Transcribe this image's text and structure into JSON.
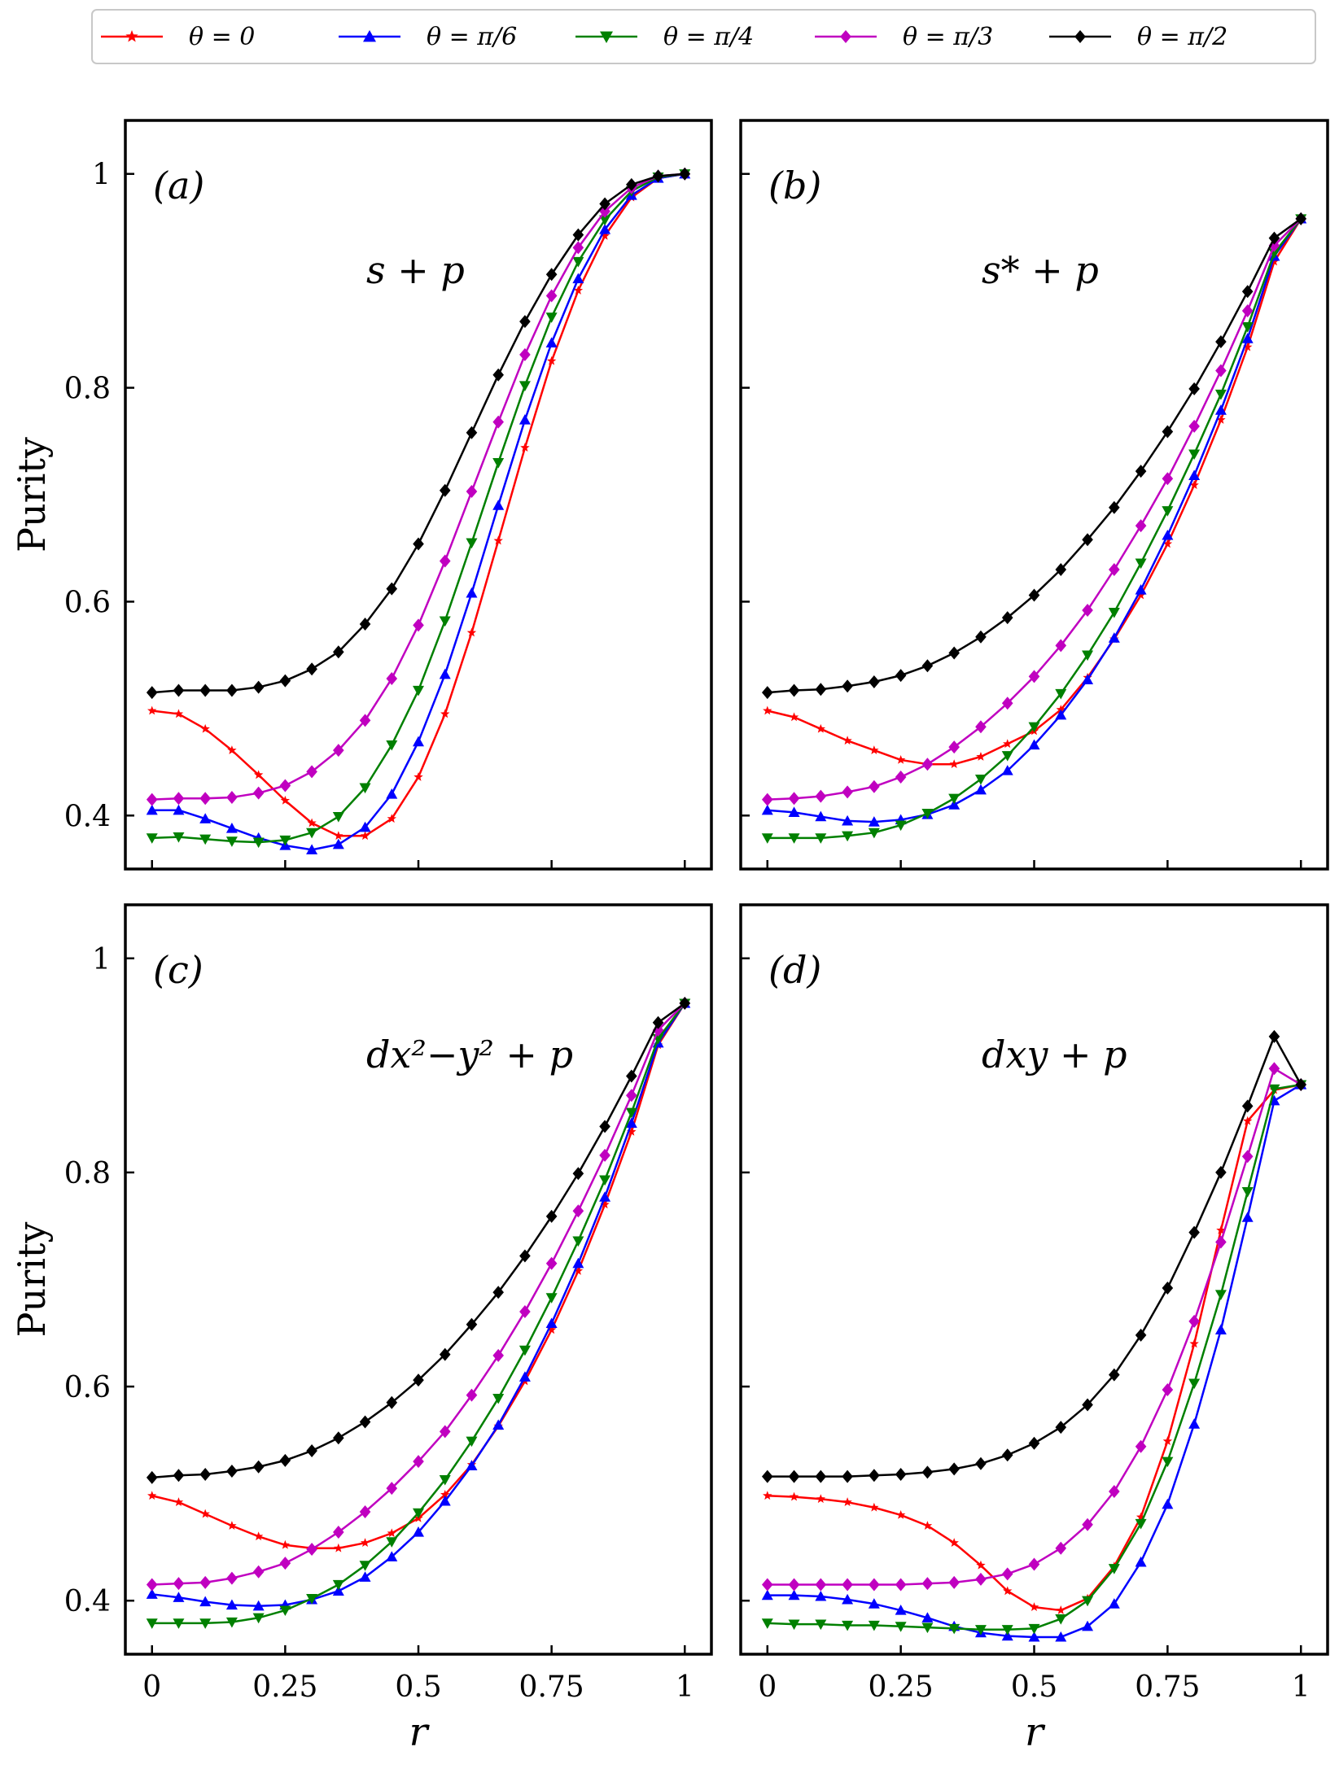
{
  "figure": {
    "x_tick_labels": [
      "0",
      "0.25",
      "0.5",
      "0.75",
      "1"
    ],
    "y_tick_labels": [
      "0.4",
      "0.6",
      "0.8",
      "1"
    ]
  },
  "legend": {
    "position": "top",
    "entries": [
      {
        "label": "θ = 0",
        "color": "#ff0000",
        "marker": "star"
      },
      {
        "label": "θ = π/6",
        "color": "#0000ff",
        "marker": "triangle-up"
      },
      {
        "label": "θ = π/4",
        "color": "#008000",
        "marker": "triangle-down"
      },
      {
        "label": "θ = π/3",
        "color": "#c000c0",
        "marker": "diamond"
      },
      {
        "label": "θ = π/2",
        "color": "#000000",
        "marker": "diamond"
      }
    ]
  },
  "chart_data": [
    {
      "type": "line",
      "panel_label": "(a)",
      "annotation": "s + p",
      "xlabel": "r",
      "ylabel": "Purity",
      "xlim": [
        -0.05,
        1.05
      ],
      "ylim": [
        0.35,
        1.05
      ],
      "x": [
        0,
        0.05,
        0.1,
        0.15,
        0.2,
        0.25,
        0.3,
        0.35,
        0.4,
        0.45,
        0.5,
        0.55,
        0.6,
        0.65,
        0.7,
        0.75,
        0.8,
        0.85,
        0.9,
        0.95,
        1.0
      ],
      "series": [
        {
          "name": "θ = 0",
          "values": [
            0.498,
            0.495,
            0.481,
            0.461,
            0.438,
            0.414,
            0.393,
            0.381,
            0.381,
            0.397,
            0.436,
            0.495,
            0.571,
            0.657,
            0.744,
            0.825,
            0.891,
            0.942,
            0.978,
            0.996,
            1.0
          ]
        },
        {
          "name": "θ = π/6",
          "values": [
            0.405,
            0.405,
            0.397,
            0.388,
            0.379,
            0.372,
            0.368,
            0.373,
            0.389,
            0.42,
            0.469,
            0.532,
            0.608,
            0.69,
            0.77,
            0.842,
            0.902,
            0.948,
            0.98,
            0.996,
            1.0
          ]
        },
        {
          "name": "θ = π/4",
          "values": [
            0.379,
            0.38,
            0.378,
            0.376,
            0.375,
            0.377,
            0.384,
            0.399,
            0.426,
            0.466,
            0.517,
            0.582,
            0.655,
            0.73,
            0.802,
            0.866,
            0.918,
            0.957,
            0.984,
            0.997,
            1.0
          ]
        },
        {
          "name": "θ = π/3",
          "values": [
            0.415,
            0.416,
            0.416,
            0.417,
            0.421,
            0.428,
            0.441,
            0.461,
            0.489,
            0.528,
            0.578,
            0.638,
            0.703,
            0.768,
            0.831,
            0.886,
            0.931,
            0.965,
            0.987,
            0.998,
            1.0
          ]
        },
        {
          "name": "θ = π/2",
          "values": [
            0.515,
            0.517,
            0.517,
            0.517,
            0.52,
            0.526,
            0.537,
            0.553,
            0.579,
            0.612,
            0.654,
            0.704,
            0.758,
            0.812,
            0.862,
            0.906,
            0.943,
            0.972,
            0.99,
            0.998,
            1.0
          ]
        }
      ]
    },
    {
      "type": "line",
      "panel_label": "(b)",
      "annotation": "s* + p",
      "xlabel": "r",
      "ylabel": "Purity",
      "xlim": [
        -0.05,
        1.05
      ],
      "ylim": [
        0.35,
        1.05
      ],
      "x": [
        0,
        0.05,
        0.1,
        0.15,
        0.2,
        0.25,
        0.3,
        0.35,
        0.4,
        0.45,
        0.5,
        0.55,
        0.6,
        0.65,
        0.7,
        0.75,
        0.8,
        0.85,
        0.9,
        0.95,
        1.0
      ],
      "series": [
        {
          "name": "θ = 0",
          "values": [
            0.498,
            0.492,
            0.481,
            0.47,
            0.461,
            0.452,
            0.448,
            0.448,
            0.455,
            0.467,
            0.479,
            0.499,
            0.529,
            0.565,
            0.606,
            0.654,
            0.709,
            0.77,
            0.838,
            0.918,
            0.958
          ]
        },
        {
          "name": "θ = π/6",
          "values": [
            0.405,
            0.403,
            0.399,
            0.395,
            0.394,
            0.396,
            0.401,
            0.41,
            0.424,
            0.442,
            0.466,
            0.494,
            0.527,
            0.566,
            0.611,
            0.662,
            0.718,
            0.779,
            0.846,
            0.923,
            0.958
          ]
        },
        {
          "name": "θ = π/4",
          "values": [
            0.379,
            0.379,
            0.379,
            0.381,
            0.384,
            0.391,
            0.402,
            0.416,
            0.434,
            0.456,
            0.483,
            0.514,
            0.55,
            0.59,
            0.636,
            0.685,
            0.738,
            0.794,
            0.857,
            0.926,
            0.958
          ]
        },
        {
          "name": "θ = π/3",
          "values": [
            0.415,
            0.416,
            0.418,
            0.422,
            0.427,
            0.436,
            0.448,
            0.464,
            0.483,
            0.505,
            0.53,
            0.559,
            0.592,
            0.63,
            0.671,
            0.715,
            0.764,
            0.816,
            0.872,
            0.933,
            0.958
          ]
        },
        {
          "name": "θ = π/2",
          "values": [
            0.515,
            0.517,
            0.518,
            0.521,
            0.525,
            0.531,
            0.54,
            0.552,
            0.567,
            0.585,
            0.606,
            0.63,
            0.658,
            0.688,
            0.722,
            0.759,
            0.799,
            0.843,
            0.89,
            0.94,
            0.958
          ]
        }
      ]
    },
    {
      "type": "line",
      "panel_label": "(c)",
      "annotation": "dx²−y² + p",
      "xlabel": "r",
      "ylabel": "Purity",
      "xlim": [
        -0.05,
        1.05
      ],
      "ylim": [
        0.35,
        1.05
      ],
      "x": [
        0,
        0.05,
        0.1,
        0.15,
        0.2,
        0.25,
        0.3,
        0.35,
        0.4,
        0.45,
        0.5,
        0.55,
        0.6,
        0.65,
        0.7,
        0.75,
        0.8,
        0.85,
        0.9,
        0.95,
        1.0
      ],
      "series": [
        {
          "name": "θ = 0",
          "values": [
            0.498,
            0.492,
            0.481,
            0.47,
            0.46,
            0.452,
            0.449,
            0.449,
            0.454,
            0.463,
            0.477,
            0.499,
            0.527,
            0.563,
            0.605,
            0.653,
            0.708,
            0.77,
            0.838,
            0.919,
            0.958
          ]
        },
        {
          "name": "θ = π/6",
          "values": [
            0.406,
            0.403,
            0.399,
            0.396,
            0.395,
            0.396,
            0.401,
            0.409,
            0.422,
            0.441,
            0.464,
            0.493,
            0.526,
            0.564,
            0.609,
            0.659,
            0.715,
            0.777,
            0.846,
            0.921,
            0.958
          ]
        },
        {
          "name": "θ = π/4",
          "values": [
            0.379,
            0.379,
            0.379,
            0.38,
            0.384,
            0.391,
            0.402,
            0.415,
            0.433,
            0.455,
            0.482,
            0.513,
            0.549,
            0.589,
            0.634,
            0.683,
            0.736,
            0.793,
            0.856,
            0.925,
            0.958
          ]
        },
        {
          "name": "θ = π/3",
          "values": [
            0.415,
            0.416,
            0.417,
            0.421,
            0.427,
            0.435,
            0.448,
            0.464,
            0.483,
            0.505,
            0.53,
            0.558,
            0.592,
            0.629,
            0.67,
            0.715,
            0.764,
            0.816,
            0.872,
            0.933,
            0.958
          ]
        },
        {
          "name": "θ = π/2",
          "values": [
            0.515,
            0.517,
            0.518,
            0.521,
            0.525,
            0.531,
            0.54,
            0.552,
            0.567,
            0.585,
            0.606,
            0.63,
            0.658,
            0.688,
            0.722,
            0.759,
            0.799,
            0.843,
            0.89,
            0.94,
            0.958
          ]
        }
      ]
    },
    {
      "type": "line",
      "panel_label": "(d)",
      "annotation": "dxy + p",
      "xlabel": "r",
      "ylabel": "Purity",
      "xlim": [
        -0.05,
        1.05
      ],
      "ylim": [
        0.35,
        1.05
      ],
      "x": [
        0,
        0.05,
        0.1,
        0.15,
        0.2,
        0.25,
        0.3,
        0.35,
        0.4,
        0.45,
        0.5,
        0.55,
        0.6,
        0.65,
        0.7,
        0.75,
        0.8,
        0.85,
        0.9,
        0.95,
        1.0
      ],
      "series": [
        {
          "name": "θ = 0",
          "values": [
            0.498,
            0.497,
            0.495,
            0.492,
            0.487,
            0.48,
            0.47,
            0.454,
            0.433,
            0.409,
            0.394,
            0.391,
            0.402,
            0.432,
            0.478,
            0.549,
            0.64,
            0.746,
            0.848,
            0.877,
            0.882
          ]
        },
        {
          "name": "θ = π/6",
          "values": [
            0.405,
            0.405,
            0.404,
            0.401,
            0.397,
            0.391,
            0.384,
            0.376,
            0.37,
            0.367,
            0.366,
            0.366,
            0.376,
            0.397,
            0.436,
            0.49,
            0.565,
            0.653,
            0.758,
            0.867,
            0.882
          ]
        },
        {
          "name": "θ = π/4",
          "values": [
            0.379,
            0.378,
            0.378,
            0.377,
            0.377,
            0.376,
            0.375,
            0.374,
            0.373,
            0.373,
            0.374,
            0.383,
            0.4,
            0.43,
            0.472,
            0.53,
            0.603,
            0.686,
            0.782,
            0.878,
            0.882
          ]
        },
        {
          "name": "θ = π/3",
          "values": [
            0.415,
            0.415,
            0.415,
            0.415,
            0.415,
            0.415,
            0.416,
            0.417,
            0.42,
            0.425,
            0.434,
            0.449,
            0.471,
            0.502,
            0.544,
            0.597,
            0.661,
            0.735,
            0.815,
            0.897,
            0.882
          ]
        },
        {
          "name": "θ = π/2",
          "values": [
            0.516,
            0.516,
            0.516,
            0.516,
            0.517,
            0.518,
            0.52,
            0.523,
            0.528,
            0.536,
            0.547,
            0.562,
            0.583,
            0.611,
            0.648,
            0.692,
            0.744,
            0.8,
            0.862,
            0.927,
            0.882
          ]
        }
      ]
    }
  ]
}
